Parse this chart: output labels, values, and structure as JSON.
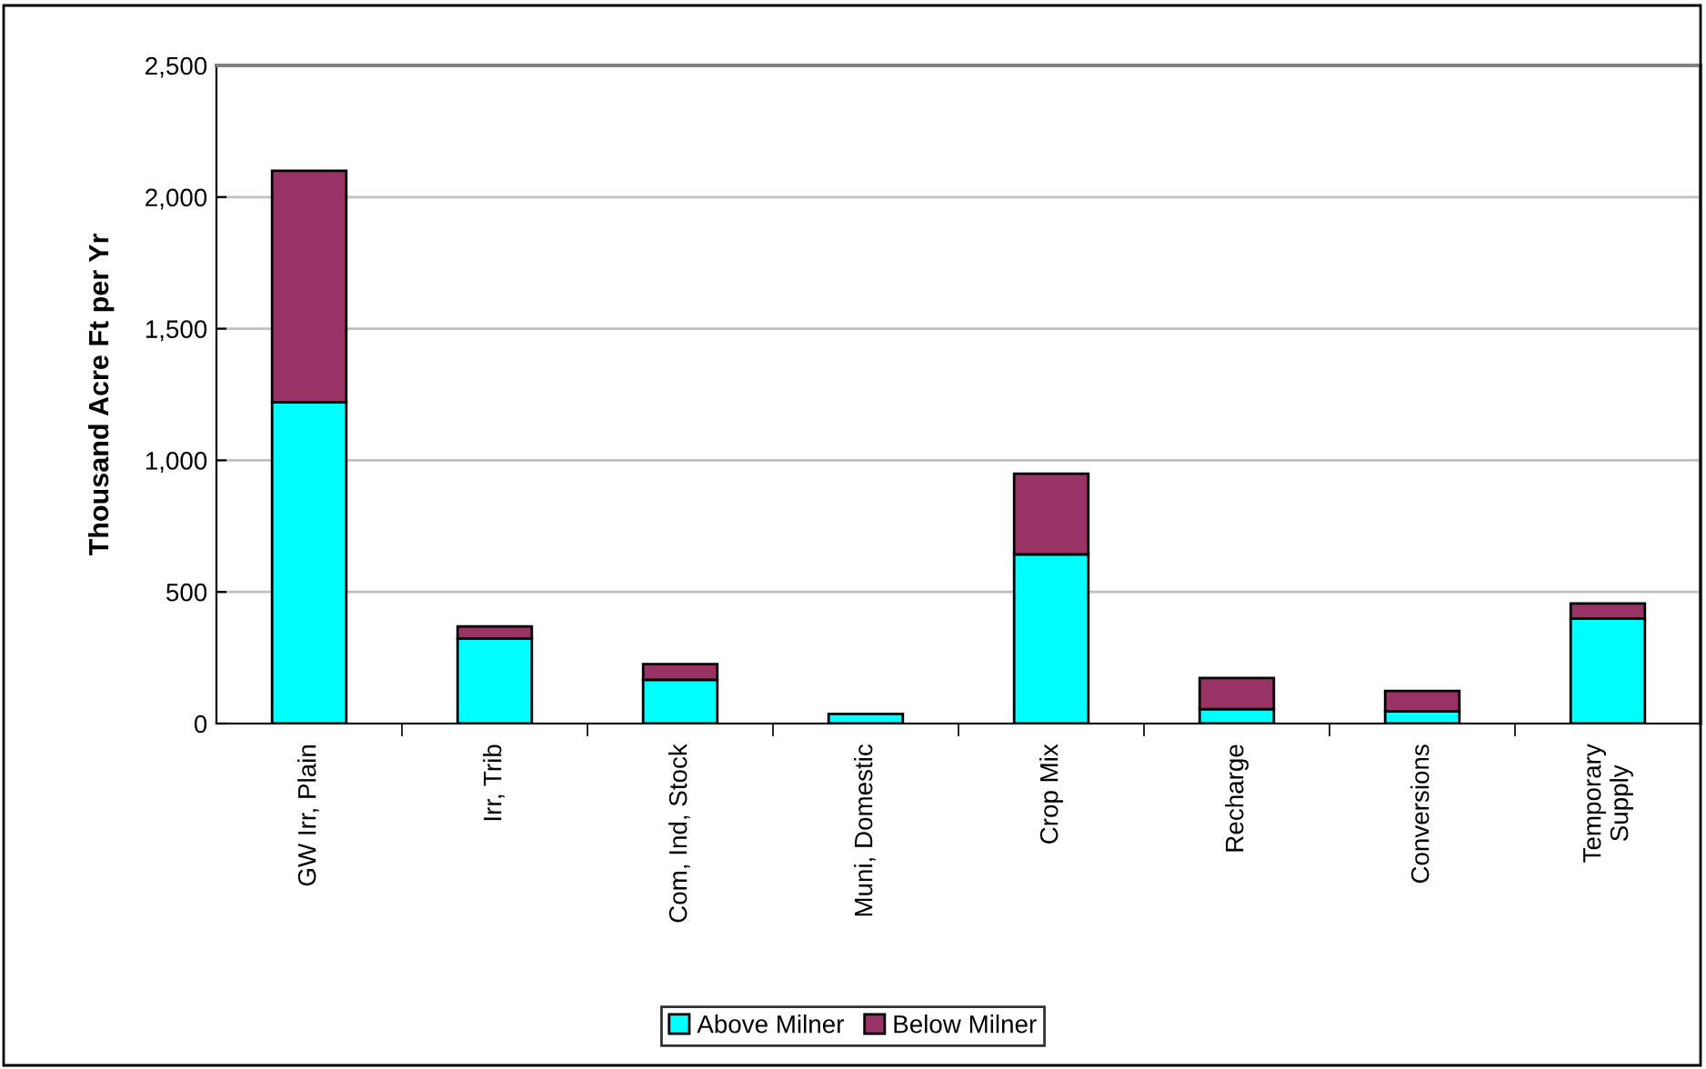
{
  "chart_data": {
    "type": "bar",
    "stacked": true,
    "ylabel": "Thousand Acre Ft per Yr",
    "categories": [
      "GW Irr, Plain",
      "Irr, Trib",
      "Com, Ind, Stock",
      "Muni, Domestic",
      "Crop Mix",
      "Recharge",
      "Conversions",
      "Temporary\nSupply"
    ],
    "series": [
      {
        "name": "Above Milner",
        "color": "#00ffff",
        "values": [
          1220,
          323,
          166,
          37,
          643,
          55,
          46,
          399
        ]
      },
      {
        "name": "Below Milner",
        "color": "#993366",
        "values": [
          880,
          46,
          60,
          null,
          306,
          118,
          78,
          57
        ]
      }
    ],
    "ylim": [
      0,
      2500
    ],
    "yticks": [
      {
        "value": 0,
        "label": "0"
      },
      {
        "value": 500,
        "label": "500"
      },
      {
        "value": 1000,
        "label": "1,000"
      },
      {
        "value": 1500,
        "label": "1,500"
      },
      {
        "value": 2000,
        "label": "2,000"
      },
      {
        "value": 2500,
        "label": "2,500"
      }
    ],
    "grid": "y",
    "legend": "bottom"
  }
}
